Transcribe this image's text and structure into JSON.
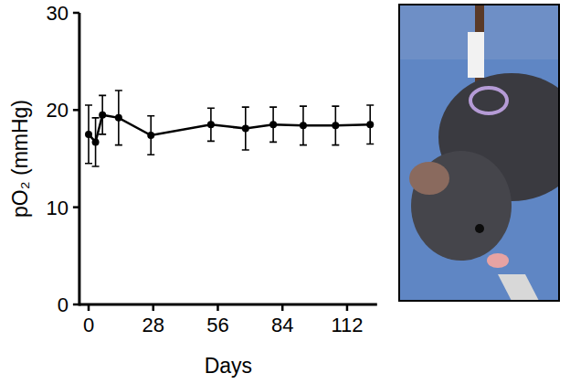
{
  "chart_data": {
    "type": "line",
    "x_label": "Days",
    "y_label": "pO₂ (mmHg)",
    "x": [
      0,
      3,
      6,
      13,
      27,
      53,
      68,
      80,
      93,
      107,
      122
    ],
    "values": [
      17.5,
      16.7,
      19.5,
      19.2,
      17.4,
      18.5,
      18.1,
      18.5,
      18.4,
      18.4,
      18.5
    ],
    "errors": [
      3.0,
      2.5,
      2.0,
      2.8,
      2.0,
      1.7,
      2.2,
      1.8,
      2.0,
      2.0,
      2.0
    ],
    "color": "#000000",
    "marker": "circle",
    "line_style": "solid",
    "grid": false,
    "xlim": [
      -4,
      125
    ],
    "xticks": [
      0,
      28,
      56,
      84,
      112
    ],
    "ylim": [
      0,
      30
    ],
    "yticks": [
      0,
      10,
      20,
      30
    ]
  }
}
